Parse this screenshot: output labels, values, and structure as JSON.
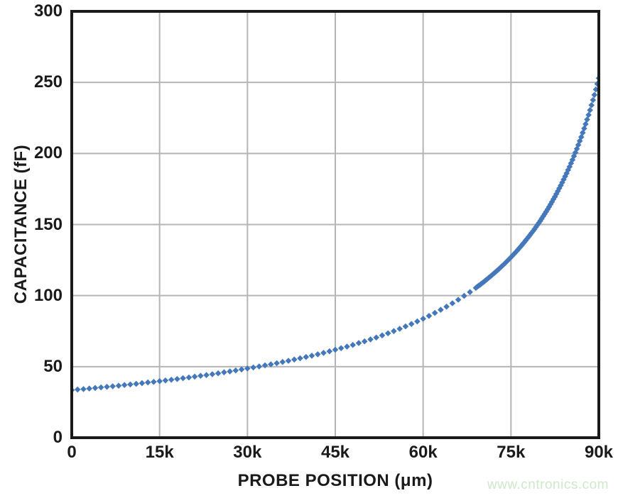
{
  "chart_data": {
    "type": "scatter",
    "title": "",
    "xlabel": "PROBE POSITION (μm)",
    "ylabel": "CAPACITANCE (fF)",
    "xlim": [
      0,
      90000
    ],
    "ylim": [
      0,
      300
    ],
    "grid": true,
    "legend": "none",
    "marker": "diamond",
    "watermark": "www.cntronics.com",
    "colors": {
      "marker": "#4478BB",
      "grid": "#B5B5B5",
      "axis": "#1A1A1A",
      "text": "#1A1A1A",
      "watermark": "#CDE9C9",
      "background": "#FFFFFF"
    },
    "x_ticks": [
      {
        "value": 0,
        "label": "0"
      },
      {
        "value": 15000,
        "label": "15k"
      },
      {
        "value": 30000,
        "label": "30k"
      },
      {
        "value": 45000,
        "label": "45k"
      },
      {
        "value": 60000,
        "label": "60k"
      },
      {
        "value": 75000,
        "label": "75k"
      },
      {
        "value": 90000,
        "label": "90k"
      }
    ],
    "y_ticks": [
      {
        "value": 0,
        "label": "0"
      },
      {
        "value": 50,
        "label": "50"
      },
      {
        "value": 100,
        "label": "100"
      },
      {
        "value": 150,
        "label": "150"
      },
      {
        "value": 200,
        "label": "200"
      },
      {
        "value": 250,
        "label": "250"
      },
      {
        "value": 300,
        "label": "300"
      }
    ],
    "series": [
      {
        "name": "capacitance-vs-probe-position",
        "points": [
          [
            0,
            33.5
          ],
          [
            1000,
            33.9
          ],
          [
            2000,
            34.2
          ],
          [
            3000,
            34.6
          ],
          [
            4000,
            35.0
          ],
          [
            5000,
            35.4
          ],
          [
            6000,
            35.8
          ],
          [
            7000,
            36.2
          ],
          [
            8000,
            36.6
          ],
          [
            9000,
            37.1
          ],
          [
            10000,
            37.5
          ],
          [
            11000,
            37.9
          ],
          [
            12000,
            38.4
          ],
          [
            13000,
            38.9
          ],
          [
            14000,
            39.3
          ],
          [
            15000,
            39.8
          ],
          [
            16000,
            40.3
          ],
          [
            17000,
            40.8
          ],
          [
            18000,
            41.3
          ],
          [
            19000,
            41.9
          ],
          [
            20000,
            42.4
          ],
          [
            21000,
            43.0
          ],
          [
            22000,
            43.6
          ],
          [
            23000,
            44.1
          ],
          [
            24000,
            44.7
          ],
          [
            25000,
            45.3
          ],
          [
            26000,
            46.0
          ],
          [
            27000,
            46.6
          ],
          [
            28000,
            47.3
          ],
          [
            29000,
            48.0
          ],
          [
            30000,
            48.7
          ],
          [
            31000,
            49.4
          ],
          [
            32000,
            50.1
          ],
          [
            33000,
            50.9
          ],
          [
            34000,
            51.6
          ],
          [
            35000,
            52.4
          ],
          [
            36000,
            53.3
          ],
          [
            37000,
            54.1
          ],
          [
            38000,
            55.0
          ],
          [
            39000,
            55.9
          ],
          [
            40000,
            56.8
          ],
          [
            41000,
            57.7
          ],
          [
            42000,
            58.7
          ],
          [
            43000,
            59.7
          ],
          [
            44000,
            60.8
          ],
          [
            45000,
            61.9
          ],
          [
            46000,
            63.0
          ],
          [
            47000,
            64.1
          ],
          [
            48000,
            65.3
          ],
          [
            49000,
            66.6
          ],
          [
            50000,
            67.8
          ],
          [
            51000,
            69.2
          ],
          [
            52000,
            70.5
          ],
          [
            53000,
            72.0
          ],
          [
            54000,
            73.5
          ],
          [
            55000,
            75.0
          ],
          [
            56000,
            76.6
          ],
          [
            57000,
            78.3
          ],
          [
            58000,
            80.0
          ],
          [
            59000,
            81.8
          ],
          [
            60000,
            83.7
          ],
          [
            61000,
            85.7
          ],
          [
            62000,
            87.8
          ],
          [
            63000,
            90.0
          ],
          [
            64000,
            92.2
          ],
          [
            65000,
            94.6
          ],
          [
            66000,
            97.1
          ],
          [
            67000,
            99.8
          ],
          [
            68000,
            102.5
          ],
          [
            69000,
            105.4
          ],
          [
            69250,
            106.2
          ],
          [
            69500,
            107.0
          ],
          [
            69750,
            107.7
          ],
          [
            70000,
            108.5
          ],
          [
            70250,
            109.3
          ],
          [
            70500,
            110.1
          ],
          [
            70750,
            111.0
          ],
          [
            71000,
            111.8
          ],
          [
            71250,
            112.7
          ],
          [
            71500,
            113.5
          ],
          [
            71750,
            114.4
          ],
          [
            72000,
            115.3
          ],
          [
            72250,
            116.2
          ],
          [
            72500,
            117.1
          ],
          [
            72750,
            118.0
          ],
          [
            73000,
            118.9
          ],
          [
            73250,
            119.9
          ],
          [
            73500,
            120.9
          ],
          [
            73750,
            121.8
          ],
          [
            74000,
            122.8
          ],
          [
            74250,
            123.9
          ],
          [
            74500,
            124.9
          ],
          [
            74750,
            125.9
          ],
          [
            75000,
            127.0
          ],
          [
            75250,
            128.1
          ],
          [
            75500,
            129.2
          ],
          [
            75750,
            130.3
          ],
          [
            76000,
            131.4
          ],
          [
            76250,
            132.6
          ],
          [
            76500,
            133.8
          ],
          [
            76750,
            135.0
          ],
          [
            77000,
            136.2
          ],
          [
            77250,
            137.4
          ],
          [
            77500,
            138.7
          ],
          [
            77750,
            140.0
          ],
          [
            78000,
            141.3
          ],
          [
            78250,
            142.6
          ],
          [
            78500,
            144.0
          ],
          [
            78750,
            145.3
          ],
          [
            79000,
            146.7
          ],
          [
            79250,
            148.2
          ],
          [
            79500,
            149.6
          ],
          [
            79750,
            151.1
          ],
          [
            80000,
            152.6
          ],
          [
            80250,
            154.2
          ],
          [
            80500,
            155.8
          ],
          [
            80750,
            157.4
          ],
          [
            81000,
            159.0
          ],
          [
            81250,
            160.7
          ],
          [
            81500,
            162.4
          ],
          [
            81750,
            164.2
          ],
          [
            82000,
            165.9
          ],
          [
            82250,
            167.8
          ],
          [
            82500,
            169.6
          ],
          [
            82750,
            171.5
          ],
          [
            83000,
            173.5
          ],
          [
            83250,
            175.5
          ],
          [
            83500,
            177.5
          ],
          [
            83750,
            179.6
          ],
          [
            84000,
            181.7
          ],
          [
            84250,
            183.9
          ],
          [
            84500,
            186.1
          ],
          [
            84750,
            188.4
          ],
          [
            85000,
            190.7
          ],
          [
            85250,
            193.1
          ],
          [
            85500,
            195.5
          ],
          [
            85750,
            198.1
          ],
          [
            86000,
            200.6
          ],
          [
            86250,
            203.3
          ],
          [
            86500,
            206.0
          ],
          [
            86750,
            208.8
          ],
          [
            87000,
            211.6
          ],
          [
            87250,
            214.6
          ],
          [
            87500,
            217.6
          ],
          [
            87750,
            220.7
          ],
          [
            88000,
            223.9
          ],
          [
            88250,
            227.1
          ],
          [
            88500,
            230.5
          ],
          [
            88750,
            234.0
          ],
          [
            89000,
            237.6
          ],
          [
            89250,
            241.2
          ],
          [
            89500,
            245.0
          ],
          [
            89750,
            249.0
          ],
          [
            90000,
            253.0
          ]
        ]
      }
    ]
  }
}
